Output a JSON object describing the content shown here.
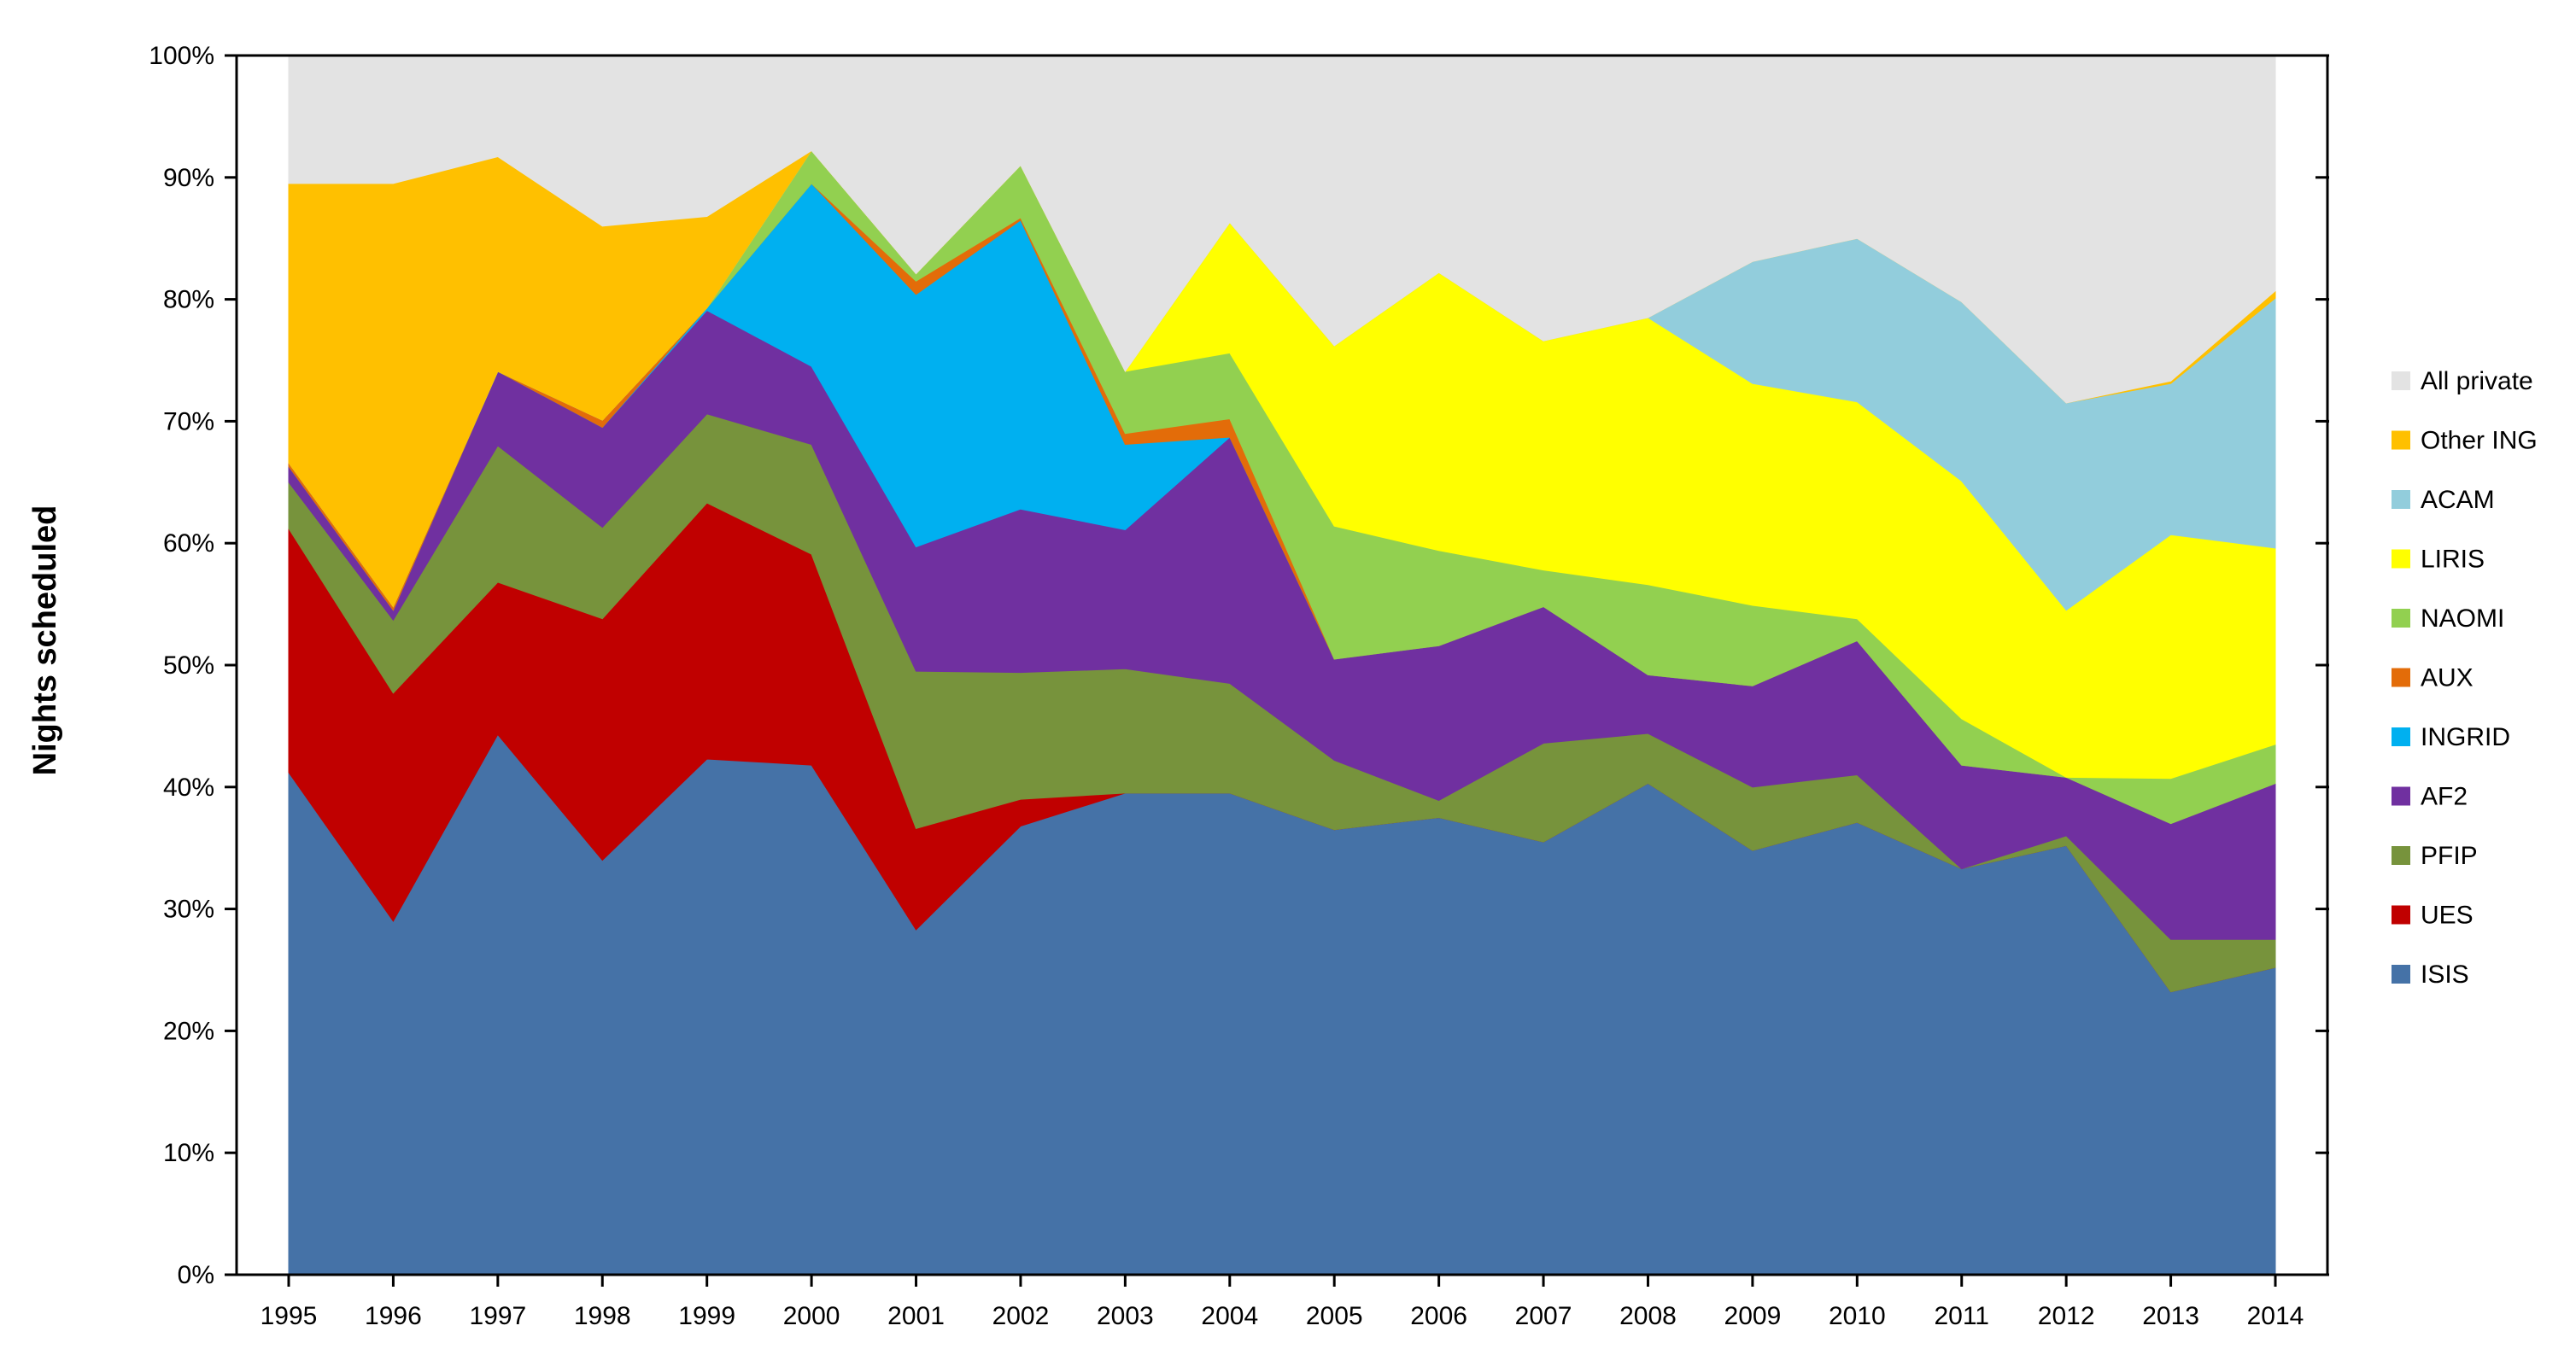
{
  "chart_data": {
    "type": "area",
    "stacked": true,
    "ylabel": "Nights scheduled",
    "xlabel": "",
    "ylim": [
      0,
      100
    ],
    "y_ticks": [
      0,
      10,
      20,
      30,
      40,
      50,
      60,
      70,
      80,
      90,
      100
    ],
    "y_tick_labels": [
      "0%",
      "10%",
      "20%",
      "30%",
      "40%",
      "50%",
      "60%",
      "70%",
      "80%",
      "90%",
      "100%"
    ],
    "x": [
      "1995",
      "1996",
      "1997",
      "1998",
      "1999",
      "2000",
      "2001",
      "2002",
      "2003",
      "2004",
      "2005",
      "2006",
      "2007",
      "2008",
      "2009",
      "2010",
      "2011",
      "2012",
      "2013",
      "2014"
    ],
    "legend_position": "right",
    "series": [
      {
        "name": "ISIS",
        "color": "#4572A7",
        "values": [
          41.2,
          29.0,
          44.3,
          34.0,
          42.3,
          41.8,
          28.3,
          36.8,
          39.5,
          39.5,
          36.5,
          37.5,
          35.5,
          40.3,
          34.8,
          37.1,
          33.3,
          35.2,
          23.2,
          25.2
        ]
      },
      {
        "name": "UES",
        "color": "#C00000",
        "values": [
          20.0,
          18.7,
          12.5,
          19.8,
          21.0,
          17.3,
          8.3,
          2.2,
          0,
          0,
          0,
          0,
          0,
          0,
          0,
          0,
          0,
          0,
          0,
          0
        ]
      },
      {
        "name": "PFIP",
        "color": "#77933C",
        "values": [
          3.8,
          6.0,
          11.2,
          7.5,
          7.3,
          9.0,
          12.9,
          10.4,
          10.2,
          9.0,
          5.7,
          1.4,
          8.1,
          4.1,
          5.2,
          3.9,
          0,
          0.8,
          4.3,
          2.3
        ]
      },
      {
        "name": "AF2",
        "color": "#7030A0",
        "values": [
          1.3,
          0.8,
          6.1,
          8.2,
          8.5,
          6.4,
          10.2,
          13.4,
          11.4,
          20.2,
          8.3,
          12.7,
          11.2,
          4.8,
          8.3,
          11.0,
          8.5,
          4.8,
          9.5,
          12.8
        ]
      },
      {
        "name": "INGRID",
        "color": "#00B0F0",
        "values": [
          0,
          0,
          0,
          0,
          0.2,
          15.0,
          20.7,
          23.7,
          7.0,
          0,
          0,
          0,
          0,
          0,
          0,
          0,
          0,
          0,
          0,
          0
        ]
      },
      {
        "name": "AUX",
        "color": "#E36C09",
        "values": [
          0.3,
          0.3,
          0,
          0.6,
          0,
          0,
          1.1,
          0.2,
          0.9,
          1.5,
          0,
          0,
          0,
          0,
          0,
          0,
          0,
          0,
          0,
          0
        ]
      },
      {
        "name": "NAOMI",
        "color": "#92D050",
        "values": [
          0,
          0,
          0,
          0,
          0,
          2.7,
          0.6,
          4.3,
          5.1,
          5.4,
          10.9,
          7.8,
          3.0,
          7.4,
          6.6,
          1.8,
          3.8,
          0,
          3.7,
          3.2
        ]
      },
      {
        "name": "LIRIS",
        "color": "#FFFF00",
        "values": [
          0,
          0,
          0,
          0,
          0,
          0,
          0,
          0,
          0,
          10.7,
          14.8,
          22.8,
          18.8,
          21.9,
          18.2,
          17.8,
          19.5,
          13.7,
          20.0,
          16.1
        ]
      },
      {
        "name": "ACAM",
        "color": "#92CDDC",
        "values": [
          0,
          0,
          0,
          0,
          0,
          0,
          0,
          0,
          0,
          0,
          0,
          0,
          0,
          0,
          10.0,
          13.4,
          14.7,
          17.0,
          12.4,
          20.5
        ]
      },
      {
        "name": "Other ING",
        "color": "#FFC000",
        "values": [
          22.9,
          34.7,
          17.6,
          15.9,
          7.5,
          0,
          0,
          0,
          0,
          0,
          0,
          0,
          0,
          0,
          0,
          0,
          0,
          0,
          0.2,
          0.6
        ]
      },
      {
        "name": "All private",
        "color": "#E3E3E3",
        "values": [
          10.5,
          10.5,
          8.3,
          14.0,
          13.2,
          7.8,
          18.1,
          9.2,
          25.9,
          13.7,
          23.8,
          17.8,
          23.4,
          21.5,
          16.9,
          15.0,
          20.2,
          28.5,
          26.7,
          19.3
        ]
      }
    ],
    "legend_order": [
      "All private",
      "Other ING",
      "ACAM",
      "LIRIS",
      "NAOMI",
      "AUX",
      "INGRID",
      "AF2",
      "PFIP",
      "UES",
      "ISIS"
    ],
    "grid": false,
    "tick_color": "#000000",
    "frame_color": "#000000"
  }
}
